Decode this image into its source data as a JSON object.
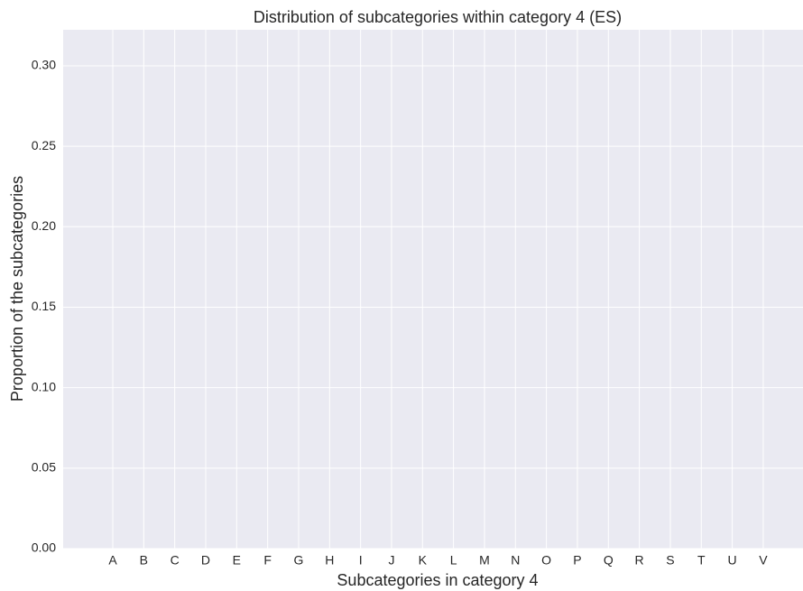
{
  "chart_data": {
    "type": "bar",
    "title": "Distribution of subcategories within category 4 (ES)",
    "xlabel": "Subcategories in category 4",
    "ylabel": "Proportion of the subcategories",
    "categories": [
      "A",
      "B",
      "C",
      "D",
      "E",
      "F",
      "G",
      "H",
      "I",
      "J",
      "K",
      "L",
      "M",
      "N",
      "O",
      "P",
      "Q",
      "R",
      "S",
      "T",
      "U",
      "V"
    ],
    "ylim": [
      0,
      0.3224
    ],
    "yticks": [
      {
        "value": 0,
        "label": "0.00"
      },
      {
        "value": 0.05,
        "label": "0.05"
      },
      {
        "value": 0.1,
        "label": "0.10"
      },
      {
        "value": 0.15,
        "label": "0.15"
      },
      {
        "value": 0.2,
        "label": "0.20"
      },
      {
        "value": 0.25,
        "label": "0.25"
      },
      {
        "value": 0.3,
        "label": "0.30"
      }
    ],
    "grid": true
  }
}
